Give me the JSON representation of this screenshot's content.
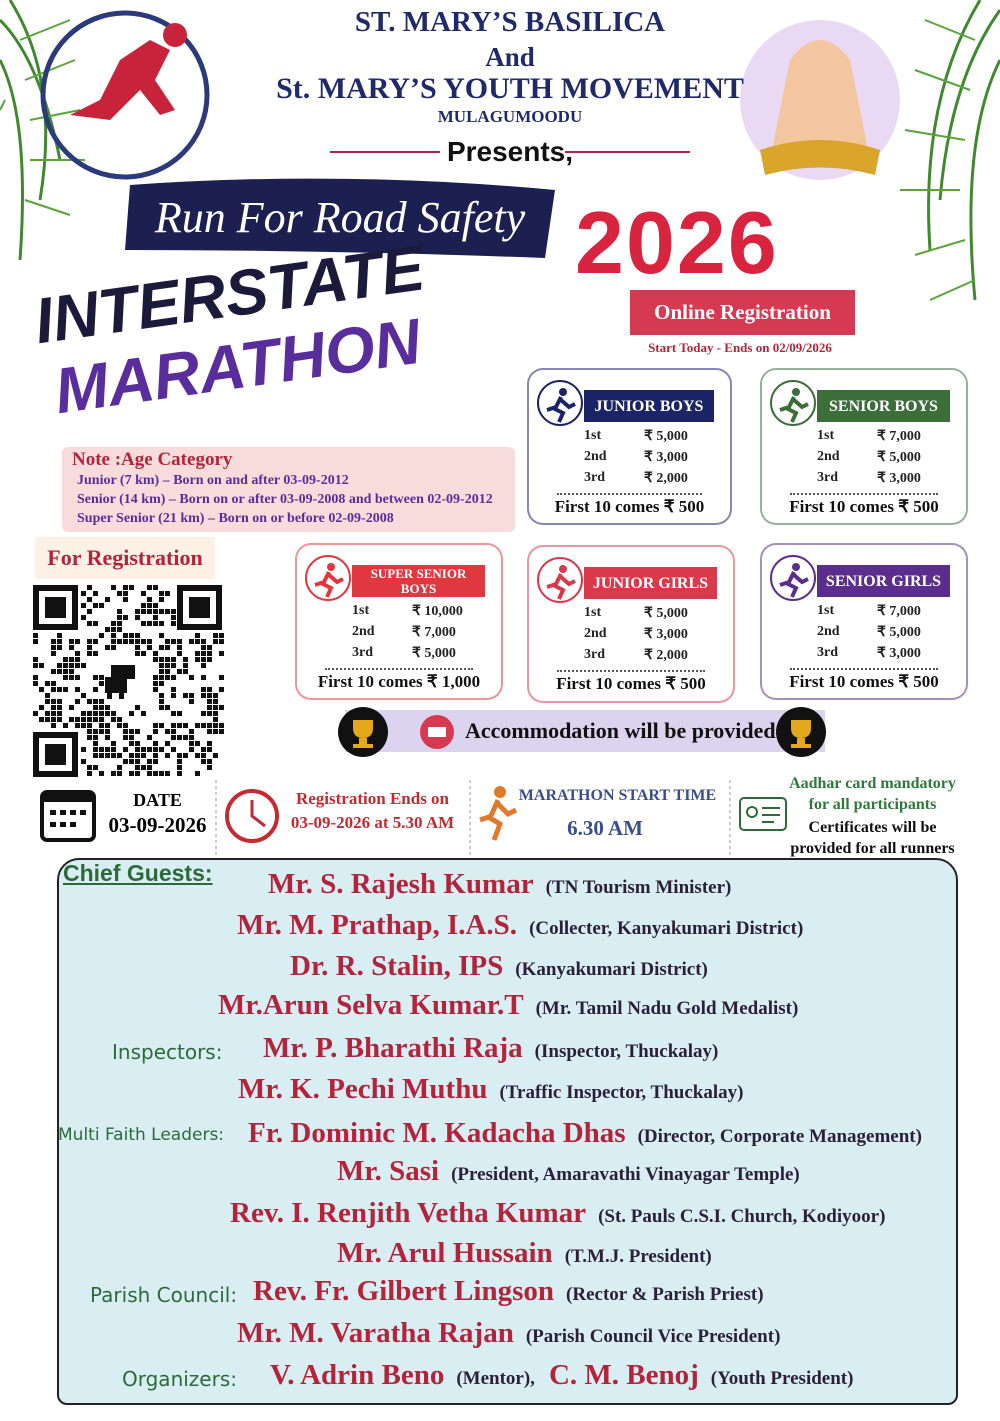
{
  "header": {
    "line1": "ST. MARY’S BASILICA",
    "line2": "And",
    "line3": "St. MARY’S YOUTH MOVEMENT",
    "line4": "MULAGUMOODU",
    "presents": "Presents,"
  },
  "banner": {
    "slogan": "Run For Road Safety",
    "year": "2026"
  },
  "title": {
    "line1": "INTERSTATE",
    "line2": "MARATHON"
  },
  "registration": {
    "button": "Online Registration",
    "note": "Start Today - Ends on 02/09/2026",
    "qr_label": "For Registration"
  },
  "age_note": {
    "title": "Note :Age Category",
    "lines": [
      "Junior (7 km) – Born on and after 03-09-2012",
      "Senior (14 km) – Born on or after 03-09-2008 and between 02-09-2012",
      "Super Senior (21 km) – Born on or before 02-09-2008"
    ]
  },
  "prizes": [
    {
      "category": "JUNIOR BOYS",
      "rows": [
        [
          "1st",
          "₹ 5,000"
        ],
        [
          "2nd",
          "₹ 3,000"
        ],
        [
          "3rd",
          "₹ 2,000"
        ]
      ],
      "first10": "First 10 comes  ₹ 500"
    },
    {
      "category": "SENIOR BOYS",
      "rows": [
        [
          "1st",
          "₹ 7,000"
        ],
        [
          "2nd",
          "₹ 5,000"
        ],
        [
          "3rd",
          "₹ 3,000"
        ]
      ],
      "first10": "First 10 comes  ₹ 500"
    },
    {
      "category": "SUPER SENIOR BOYS",
      "rows": [
        [
          "1st",
          "₹ 10,000"
        ],
        [
          "2nd",
          "₹ 7,000"
        ],
        [
          "3rd",
          "₹ 5,000"
        ]
      ],
      "first10": "First 10 comes  ₹ 1,000"
    },
    {
      "category": "JUNIOR GIRLS",
      "rows": [
        [
          "1st",
          "₹ 5,000"
        ],
        [
          "2nd",
          "₹ 3,000"
        ],
        [
          "3rd",
          "₹ 2,000"
        ]
      ],
      "first10": "First 10 comes  ₹ 500"
    },
    {
      "category": "SENIOR GIRLS",
      "rows": [
        [
          "1st",
          "₹ 7,000"
        ],
        [
          "2nd",
          "₹ 5,000"
        ],
        [
          "3rd",
          "₹ 3,000"
        ]
      ],
      "first10": "First 10 comes  ₹ 500"
    }
  ],
  "accommodation": "Accommodation will be provided",
  "info": {
    "date_label": "DATE",
    "date": "03-09-2026",
    "reg_ends_label": "Registration Ends on",
    "reg_ends": "03-09-2026 at 5.30 AM",
    "start_label": "MARATHON START TIME",
    "start_time": "6.30 AM",
    "aadhar": [
      "Aadhar card mandatory",
      "for all participants"
    ],
    "certificates": [
      "Certificates will be",
      "provided for all runners"
    ]
  },
  "guests": {
    "heading": "Chief Guests:",
    "rows": [
      {
        "name": "Mr. S. Rajesh Kumar",
        "role": "(TN Tourism Minister)"
      },
      {
        "name": "Mr. M. Prathap, I.A.S.",
        "role": "(Collecter, Kanyakumari District)"
      },
      {
        "name": "Dr. R. Stalin, IPS",
        "role": "(Kanyakumari District)"
      },
      {
        "name": "Mr.Arun Selva Kumar.T",
        "role": "(Mr. Tamil Nadu Gold Medalist)"
      },
      {
        "label": "Inspectors:",
        "name": "Mr. P. Bharathi Raja",
        "role": "(Inspector, Thuckalay)"
      },
      {
        "name": "Mr. K. Pechi Muthu",
        "role": "(Traffic Inspector, Thuckalay)"
      },
      {
        "label": "Multi Faith Leaders:",
        "name": "Fr. Dominic M. Kadacha Dhas",
        "role": "(Director, Corporate Management)"
      },
      {
        "name": "Mr. Sasi",
        "role": "(President, Amaravathi Vinayagar Temple)"
      },
      {
        "name": "Rev. I. Renjith Vetha Kumar",
        "role": "(St. Pauls C.S.I. Church, Kodiyoor)"
      },
      {
        "name": "Mr. Arul Hussain",
        "role": "(T.M.J. President)"
      },
      {
        "label": "Parish Council:",
        "name": "Rev. Fr. Gilbert Lingson",
        "role": "(Rector & Parish Priest)"
      },
      {
        "name": "Mr. M. Varatha Rajan",
        "role": "(Parish Council Vice President)"
      },
      {
        "label": "Organizers:",
        "name": "V. Adrin Beno",
        "role": "(Mentor),",
        "name2": "C. M. Benoj",
        "role2": "(Youth President)"
      }
    ]
  }
}
